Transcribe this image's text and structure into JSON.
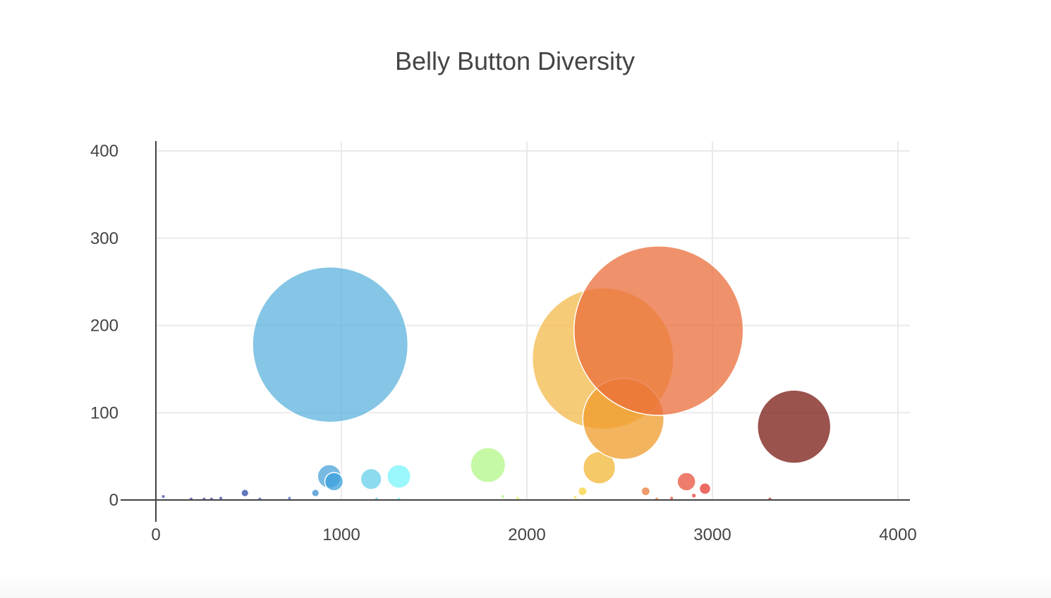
{
  "chart_data": {
    "type": "scatter",
    "title": "Belly Button Diversity",
    "xlabel": "",
    "ylabel": "",
    "xlim": [
      0,
      4000
    ],
    "ylim": [
      0,
      400
    ],
    "x_ticks": [
      "0",
      "1000",
      "2000",
      "3000",
      "4000"
    ],
    "y_ticks": [
      "0",
      "100",
      "200",
      "300",
      "400"
    ],
    "grid": true,
    "legend": "none",
    "marker_size_encodes": "y value",
    "points": [
      {
        "x": 40,
        "y": 4,
        "color": "#3f4aa6"
      },
      {
        "x": 190,
        "y": 1,
        "color": "#3f4aa6"
      },
      {
        "x": 260,
        "y": 1,
        "color": "#3f4aa6"
      },
      {
        "x": 300,
        "y": 1,
        "color": "#3f4aa6"
      },
      {
        "x": 350,
        "y": 2,
        "color": "#3f4aa6"
      },
      {
        "x": 480,
        "y": 8,
        "color": "#2f4aa8"
      },
      {
        "x": 560,
        "y": 1,
        "color": "#4a5db8"
      },
      {
        "x": 720,
        "y": 2,
        "color": "#4a74c4"
      },
      {
        "x": 860,
        "y": 8,
        "color": "#3b8fd0"
      },
      {
        "x": 935,
        "y": 27,
        "color": "#4aa3d8"
      },
      {
        "x": 960,
        "y": 21,
        "color": "#3aa0dc"
      },
      {
        "x": 940,
        "y": 178,
        "color": "#5cb1dc"
      },
      {
        "x": 1160,
        "y": 24,
        "color": "#66cfea"
      },
      {
        "x": 1190,
        "y": 1,
        "color": "#66cfea"
      },
      {
        "x": 1310,
        "y": 27,
        "color": "#78f4fa"
      },
      {
        "x": 1310,
        "y": 1,
        "color": "#78f4fa"
      },
      {
        "x": 1790,
        "y": 40,
        "color": "#b3f788"
      },
      {
        "x": 1870,
        "y": 4,
        "color": "#b3f788"
      },
      {
        "x": 1950,
        "y": 2,
        "color": "#e7ef7a"
      },
      {
        "x": 2260,
        "y": 3,
        "color": "#f7df5f"
      },
      {
        "x": 2300,
        "y": 10,
        "color": "#f8d33e"
      },
      {
        "x": 2410,
        "y": 162,
        "color": "#f3b94a"
      },
      {
        "x": 2390,
        "y": 37,
        "color": "#f2b535"
      },
      {
        "x": 2520,
        "y": 93,
        "color": "#ef9b2a"
      },
      {
        "x": 2710,
        "y": 194,
        "color": "#ea6c3a"
      },
      {
        "x": 2640,
        "y": 10,
        "color": "#ea7a3a"
      },
      {
        "x": 2700,
        "y": 1,
        "color": "#ea7a3a"
      },
      {
        "x": 2780,
        "y": 2,
        "color": "#e6503a"
      },
      {
        "x": 2860,
        "y": 21,
        "color": "#e9513c"
      },
      {
        "x": 2900,
        "y": 5,
        "color": "#e9413c"
      },
      {
        "x": 2960,
        "y": 13,
        "color": "#e43a2f"
      },
      {
        "x": 3310,
        "y": 1,
        "color": "#b33a2f"
      },
      {
        "x": 3440,
        "y": 84,
        "color": "#7a1a12"
      }
    ]
  }
}
